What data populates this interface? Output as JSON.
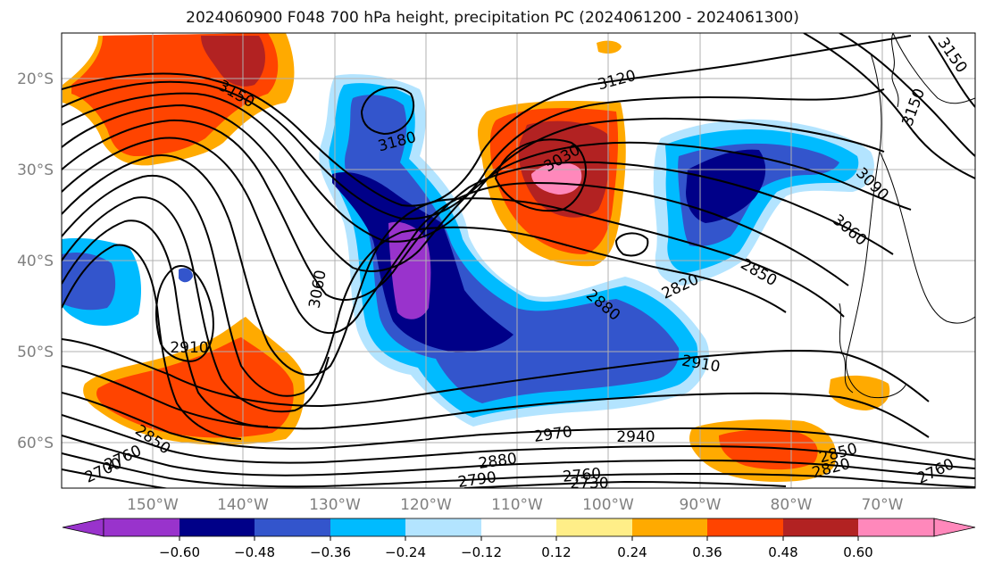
{
  "title": "2024060900 F048 700 hPa height, precipitation PC (2024061200 - 2024061300)",
  "lat_labels": [
    "20°S",
    "30°S",
    "40°S",
    "50°S",
    "60°S"
  ],
  "lon_labels": [
    "150°W",
    "140°W",
    "130°W",
    "120°W",
    "110°W",
    "100°W",
    "90°W",
    "80°W",
    "70°W"
  ],
  "colorbar": {
    "tick_labels": [
      "−0.60",
      "−0.48",
      "−0.36",
      "−0.24",
      "−0.12",
      "0.12",
      "0.24",
      "0.36",
      "0.48",
      "0.60"
    ],
    "colors": [
      "#9933cc",
      "#000088",
      "#3355cc",
      "#00bbff",
      "#b3e4ff",
      "#ffffff",
      "#ffee88",
      "#ffaa00",
      "#ff4400",
      "#b22222",
      "#ff88bb"
    ]
  },
  "height_labels": [
    "3150",
    "3180",
    "3120",
    "3030",
    "3060",
    "2910",
    "2850",
    "2880",
    "2820",
    "2910",
    "3090",
    "3060",
    "2850",
    "2970",
    "2940",
    "2880",
    "2790",
    "2760",
    "2730",
    "2850",
    "2820",
    "2760",
    "2760",
    "2700",
    "3150",
    "3150"
  ],
  "colors": {
    "contour": "#000000",
    "grid": "#b0b0b0",
    "coast": "#000000"
  }
}
